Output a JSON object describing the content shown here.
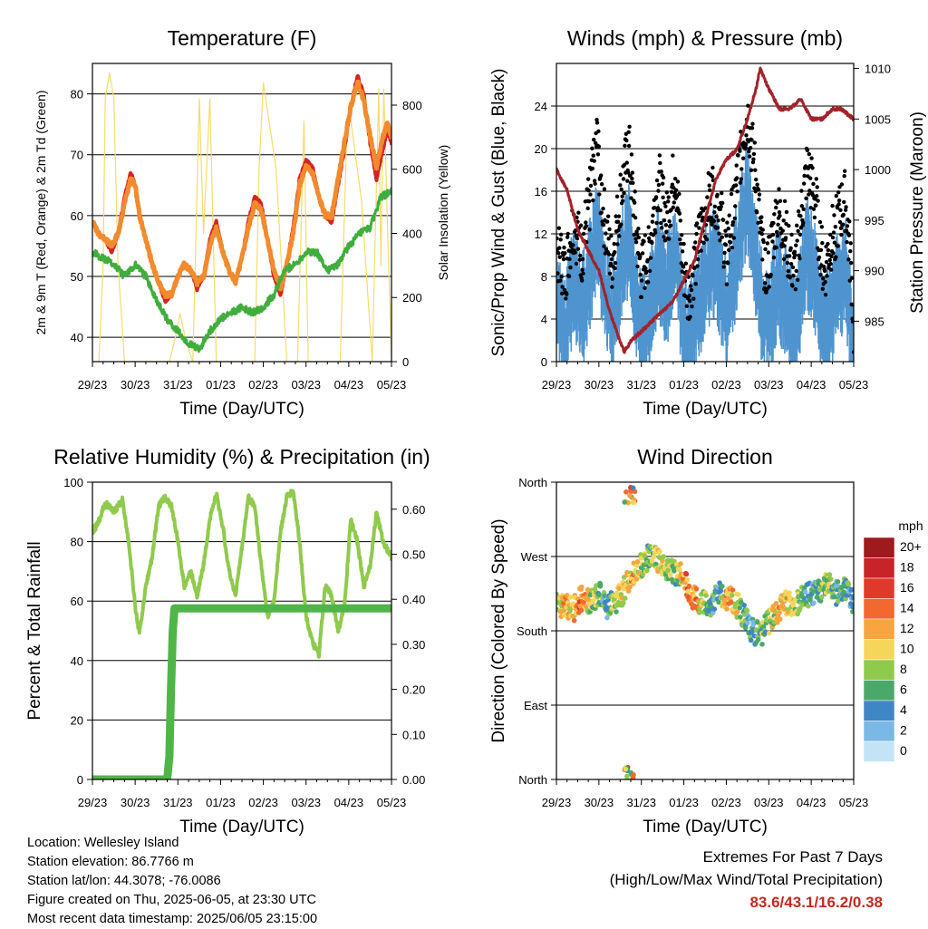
{
  "colors": {
    "temp_2m": "#d42222",
    "temp_9m": "#f28a2e",
    "dewpoint": "#3fae3c",
    "insolation": "#f5dc6a",
    "wind": "#4f94cf",
    "gust": "#000000",
    "pressure": "#a3222a",
    "rh": "#8fca4c",
    "precip": "#4fb548",
    "gridline": "#000000"
  },
  "chart_data": [
    {
      "id": "temperature",
      "type": "line",
      "title": "Temperature (F)",
      "xlabel": "Time (Day/UTC)",
      "ylabel": "2m & 9m T (Red, Orange) & 2m Td (Green)",
      "y2label": "Solar Insolation (Yellow)",
      "ylim": [
        36,
        85
      ],
      "y2lim": [
        0,
        930
      ],
      "yticks": [
        "40",
        "50",
        "60",
        "70",
        "80"
      ],
      "y2ticks": [
        "0",
        "200",
        "400",
        "600",
        "800"
      ],
      "xlim": [
        0,
        7
      ],
      "xticks": [
        "29/23",
        "30/23",
        "31/23",
        "01/23",
        "02/23",
        "03/23",
        "04/23",
        "05/23"
      ],
      "grid": true,
      "series": [
        {
          "key": "temp_2m",
          "x": [
            0,
            0.15,
            0.3,
            0.45,
            0.6,
            0.75,
            0.9,
            1.0,
            1.1,
            1.25,
            1.4,
            1.55,
            1.7,
            1.85,
            2.0,
            2.15,
            2.3,
            2.45,
            2.6,
            2.75,
            2.9,
            3.05,
            3.2,
            3.35,
            3.5,
            3.65,
            3.8,
            3.95,
            4.1,
            4.25,
            4.4,
            4.55,
            4.7,
            4.85,
            5.0,
            5.15,
            5.3,
            5.45,
            5.6,
            5.75,
            5.9,
            6.05,
            6.2,
            6.35,
            6.5,
            6.65,
            6.8,
            6.9,
            7.0
          ],
          "values": [
            59,
            57,
            56,
            54,
            57,
            63,
            67,
            65,
            60,
            56,
            52,
            49,
            46,
            47,
            50,
            52,
            51,
            48,
            50,
            56,
            59,
            54,
            51,
            49,
            53,
            59,
            63,
            62,
            56,
            50,
            47,
            52,
            58,
            66,
            69,
            68,
            63,
            60,
            59,
            65,
            71,
            78,
            83,
            80,
            72,
            66,
            71,
            74,
            72
          ]
        },
        {
          "key": "temp_9m",
          "x": [
            0,
            0.15,
            0.3,
            0.45,
            0.6,
            0.75,
            0.9,
            1.0,
            1.1,
            1.25,
            1.4,
            1.55,
            1.7,
            1.85,
            2.0,
            2.15,
            2.3,
            2.45,
            2.6,
            2.75,
            2.9,
            3.05,
            3.2,
            3.35,
            3.5,
            3.65,
            3.8,
            3.95,
            4.1,
            4.25,
            4.4,
            4.55,
            4.7,
            4.85,
            5.0,
            5.15,
            5.3,
            5.45,
            5.6,
            5.75,
            5.9,
            6.05,
            6.2,
            6.35,
            6.5,
            6.65,
            6.8,
            6.9,
            7.0
          ],
          "values": [
            59,
            57,
            56,
            55,
            57,
            62,
            66,
            65,
            60,
            56,
            52,
            49,
            47,
            47,
            50,
            52,
            51,
            49,
            50,
            55,
            58,
            54,
            51,
            49,
            53,
            58,
            62,
            61,
            56,
            51,
            48,
            52,
            57,
            65,
            68,
            67,
            63,
            60,
            60,
            66,
            72,
            78,
            82,
            79,
            73,
            68,
            73,
            75,
            73
          ]
        },
        {
          "key": "dewpoint",
          "x": [
            0,
            0.25,
            0.5,
            0.75,
            1.0,
            1.25,
            1.5,
            1.75,
            2.0,
            2.25,
            2.5,
            2.75,
            3.0,
            3.25,
            3.5,
            3.75,
            4.0,
            4.25,
            4.5,
            4.75,
            5.0,
            5.25,
            5.5,
            5.75,
            6.0,
            6.25,
            6.5,
            6.75,
            7.0
          ],
          "values": [
            54,
            53,
            52,
            50,
            52,
            50,
            46,
            43,
            41,
            39,
            38,
            41,
            43,
            44,
            45,
            44,
            45,
            47,
            51,
            52,
            54,
            54,
            51,
            52,
            55,
            57,
            58,
            63,
            64
          ]
        },
        {
          "key": "insolation",
          "axis": "y2",
          "x": [
            0,
            0.15,
            0.25,
            0.3,
            0.4,
            0.5,
            0.6,
            0.75,
            1.0,
            1.3,
            1.5,
            1.8,
            1.95,
            2.05,
            2.2,
            2.35,
            2.5,
            2.6,
            2.75,
            2.9,
            3.0,
            3.3,
            3.55,
            3.8,
            3.9,
            4.0,
            4.3,
            4.55,
            4.8,
            4.95,
            5.05,
            5.3,
            5.55,
            5.8,
            5.95,
            6.0,
            6.3,
            6.55,
            6.7,
            6.75,
            6.82,
            6.9,
            7.0
          ],
          "values": [
            0,
            0,
            300,
            820,
            900,
            820,
            300,
            0,
            0,
            0,
            0,
            0,
            80,
            150,
            60,
            0,
            820,
            400,
            820,
            0,
            0,
            0,
            0,
            0,
            600,
            870,
            600,
            0,
            0,
            750,
            0,
            0,
            0,
            0,
            700,
            800,
            500,
            0,
            850,
            300,
            850,
            450,
            0
          ]
        }
      ]
    },
    {
      "id": "winds_pressure",
      "type": "line",
      "title": "Winds (mph) & Pressure (mb)",
      "xlabel": "Time (Day/UTC)",
      "ylabel": "Sonic/Prop Wind & Gust (Blue, Black)",
      "y2label": "Station Pressure (Maroon)",
      "ylim": [
        0,
        28
      ],
      "y2lim": [
        981,
        1010.5
      ],
      "yticks": [
        "0",
        "4",
        "8",
        "12",
        "16",
        "20",
        "24"
      ],
      "y2ticks": [
        "985",
        "990",
        "995",
        "1000",
        "1005",
        "1010"
      ],
      "xlim": [
        0,
        7
      ],
      "xticks": [
        "29/23",
        "30/23",
        "31/23",
        "01/23",
        "02/23",
        "03/23",
        "04/23",
        "05/23"
      ],
      "grid": true,
      "series": [
        {
          "key": "wind",
          "x": [
            0,
            0.2,
            0.4,
            0.6,
            0.8,
            0.95,
            1.1,
            1.3,
            1.5,
            1.7,
            1.85,
            2.0,
            2.2,
            2.4,
            2.6,
            2.8,
            2.95,
            3.1,
            3.3,
            3.5,
            3.7,
            3.85,
            4.0,
            4.2,
            4.35,
            4.5,
            4.7,
            4.85,
            5.0,
            5.2,
            5.4,
            5.6,
            5.75,
            5.9,
            6.1,
            6.3,
            6.45,
            6.6,
            6.8,
            6.95,
            7.0
          ],
          "values": [
            7,
            4,
            9,
            6,
            10,
            14,
            9,
            5,
            10,
            13,
            8,
            4,
            7,
            11,
            8,
            12,
            6,
            3,
            6,
            9,
            11,
            9,
            6,
            10,
            14,
            17,
            11,
            6,
            5,
            9,
            7,
            4,
            8,
            12,
            9,
            4,
            6,
            8,
            10,
            4,
            1
          ]
        },
        {
          "key": "gust",
          "x": [
            0,
            0.2,
            0.4,
            0.6,
            0.8,
            0.95,
            1.1,
            1.3,
            1.5,
            1.7,
            1.85,
            2.0,
            2.2,
            2.4,
            2.6,
            2.8,
            2.95,
            3.1,
            3.3,
            3.5,
            3.7,
            3.85,
            4.0,
            4.2,
            4.35,
            4.5,
            4.7,
            4.85,
            5.0,
            5.2,
            5.4,
            5.6,
            5.75,
            5.9,
            6.1,
            6.3,
            6.45,
            6.6,
            6.8,
            6.95,
            7.0
          ],
          "values": [
            11,
            8,
            13,
            10,
            16,
            21,
            14,
            9,
            15,
            20,
            13,
            8,
            11,
            17,
            13,
            18,
            10,
            6,
            10,
            14,
            16,
            14,
            10,
            15,
            20,
            23,
            17,
            10,
            9,
            14,
            12,
            8,
            13,
            18,
            15,
            8,
            11,
            13,
            15,
            8,
            3
          ]
        },
        {
          "key": "pressure",
          "axis": "y2",
          "x": [
            0,
            0.25,
            0.5,
            0.75,
            1.0,
            1.25,
            1.5,
            1.6,
            1.75,
            2.0,
            2.25,
            2.5,
            2.75,
            3.0,
            3.25,
            3.5,
            3.75,
            4.0,
            4.25,
            4.5,
            4.7,
            4.8,
            5.0,
            5.25,
            5.5,
            5.75,
            6.0,
            6.25,
            6.5,
            6.7,
            7.0
          ],
          "values": [
            1000,
            998,
            994,
            992,
            990,
            986,
            983,
            982,
            983,
            984,
            985,
            986,
            987,
            989,
            991,
            995,
            999,
            1001,
            1002,
            1005,
            1008,
            1010,
            1008,
            1006,
            1006,
            1007,
            1005,
            1005,
            1006,
            1006,
            1005
          ]
        }
      ]
    },
    {
      "id": "humidity_precip",
      "type": "line",
      "title": "Relative Humidity (%) & Precipitation (in)",
      "xlabel": "Time (Day/UTC)",
      "ylabel": "Percent & Total Rainfall",
      "ylim": [
        0,
        100
      ],
      "y2lim": [
        0,
        0.66
      ],
      "yticks": [
        "0",
        "20",
        "40",
        "60",
        "80",
        "100"
      ],
      "y2ticks": [
        "0.00",
        "0.10",
        "0.20",
        "0.30",
        "0.40",
        "0.50",
        "0.60"
      ],
      "xlim": [
        0,
        7
      ],
      "xticks": [
        "29/23",
        "30/23",
        "31/23",
        "01/23",
        "02/23",
        "03/23",
        "04/23",
        "05/23"
      ],
      "grid": true,
      "series": [
        {
          "key": "rh",
          "x": [
            0,
            0.15,
            0.3,
            0.5,
            0.7,
            0.85,
            1.0,
            1.1,
            1.25,
            1.4,
            1.55,
            1.7,
            1.85,
            2.0,
            2.15,
            2.3,
            2.45,
            2.6,
            2.75,
            2.9,
            3.05,
            3.2,
            3.35,
            3.5,
            3.65,
            3.8,
            3.95,
            4.1,
            4.25,
            4.4,
            4.55,
            4.7,
            4.85,
            5.0,
            5.15,
            5.3,
            5.45,
            5.6,
            5.75,
            5.9,
            6.05,
            6.2,
            6.35,
            6.5,
            6.65,
            6.8,
            7.0
          ],
          "values": [
            83,
            87,
            93,
            90,
            94,
            80,
            58,
            49,
            65,
            75,
            92,
            95,
            92,
            80,
            65,
            70,
            62,
            72,
            88,
            96,
            85,
            70,
            62,
            78,
            95,
            92,
            72,
            55,
            60,
            83,
            95,
            97,
            80,
            55,
            46,
            42,
            65,
            62,
            50,
            58,
            88,
            80,
            65,
            72,
            90,
            80,
            75
          ]
        },
        {
          "key": "precip",
          "axis": "y2",
          "x": [
            0,
            1.0,
            1.5,
            1.75,
            1.8,
            1.84,
            1.88,
            1.92,
            2.0,
            7.0
          ],
          "values": [
            0,
            0,
            0,
            0,
            0.05,
            0.2,
            0.33,
            0.38,
            0.38,
            0.38
          ]
        }
      ]
    },
    {
      "id": "wind_direction",
      "type": "scatter",
      "title": "Wind Direction",
      "xlabel": "Time (Day/UTC)",
      "ylabel": "Direction (Colored By Speed)",
      "ylim": [
        0,
        360
      ],
      "yticks": [
        "North",
        "East",
        "South",
        "West",
        "North"
      ],
      "xlim": [
        0,
        7
      ],
      "xticks": [
        "29/23",
        "30/23",
        "31/23",
        "01/23",
        "02/23",
        "03/23",
        "04/23",
        "05/23"
      ],
      "grid": true,
      "colorbar": {
        "title": "mph",
        "labels": [
          "20+",
          "18",
          "16",
          "14",
          "12",
          "10",
          "8",
          "6",
          "4",
          "2",
          "0"
        ],
        "colors": [
          "#9e1a1c",
          "#c6232a",
          "#e0392b",
          "#f2682f",
          "#f8a43f",
          "#f5d65a",
          "#8fca4c",
          "#4ba86b",
          "#3f86c5",
          "#7ab8e6",
          "#c3e4f7"
        ]
      },
      "series": [
        {
          "key": "dir",
          "x": [
            0.0,
            0.2,
            0.4,
            0.6,
            0.8,
            1.0,
            1.2,
            1.4,
            1.6,
            1.8,
            2.0,
            2.2,
            2.4,
            2.6,
            2.8,
            3.0,
            3.2,
            3.4,
            3.6,
            3.8,
            4.0,
            4.2,
            4.4,
            4.6,
            4.8,
            5.0,
            5.2,
            5.4,
            5.6,
            5.8,
            6.0,
            6.2,
            6.4,
            6.6,
            6.8,
            7.0
          ],
          "values": [
            215,
            210,
            205,
            220,
            215,
            225,
            210,
            215,
            230,
            250,
            260,
            270,
            265,
            255,
            250,
            245,
            220,
            215,
            210,
            225,
            220,
            215,
            200,
            180,
            175,
            190,
            205,
            215,
            210,
            220,
            225,
            230,
            240,
            225,
            235,
            215
          ],
          "speeds": [
            8,
            12,
            10,
            14,
            8,
            6,
            4,
            8,
            10,
            12,
            8,
            6,
            10,
            8,
            6,
            12,
            14,
            10,
            6,
            4,
            12,
            10,
            6,
            4,
            6,
            8,
            10,
            12,
            8,
            6,
            4,
            6,
            8,
            4,
            6,
            2
          ]
        }
      ]
    }
  ],
  "info": {
    "location": "Location: Wellesley Island",
    "elevation": "Station elevation: 86.7766 m",
    "latlon": "Station lat/lon: 44.3078; -76.0086",
    "created": "Figure created on Thu, 2025-06-05, at 23:30 UTC",
    "recent": "Most recent data timestamp: 2025/06/05 23:15:00"
  },
  "extremes": {
    "title": "Extremes For Past 7 Days",
    "subtitle": "(High/Low/Max Wind/Total Precipitation)",
    "values": "83.6/43.1/16.2/0.38"
  }
}
